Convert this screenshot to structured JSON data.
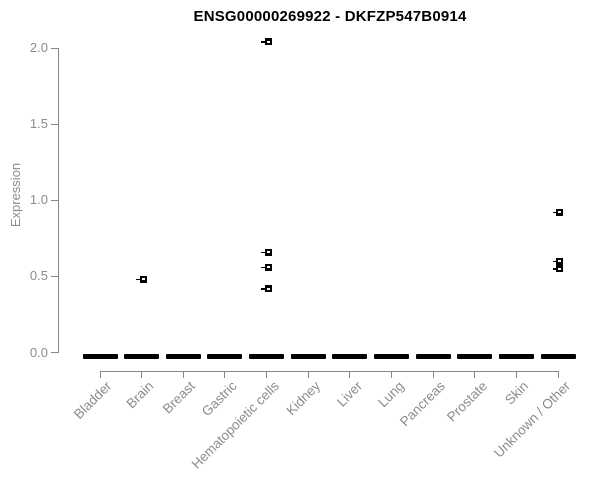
{
  "chart_data": {
    "type": "scatter",
    "subtype": "strip-plot-with-boxplot-glyphs",
    "title": "ENSG00000269922 - DKFZP547B0914",
    "xlabel": "",
    "ylabel": "Expression",
    "ylim": [
      0.0,
      2.1
    ],
    "yticks": [
      0.0,
      0.5,
      1.0,
      1.5,
      2.0
    ],
    "ytick_labels": [
      "0.0",
      "0.5",
      "1.0",
      "1.5",
      "2.0"
    ],
    "grid": "off",
    "legend": "none",
    "categories": [
      "Bladder",
      "Brain",
      "Breast",
      "Gastric",
      "Hematopoietic cells",
      "Kidney",
      "Liver",
      "Lung",
      "Pancreas",
      "Prostate",
      "Skin",
      "Unknown / Other"
    ],
    "zero_cluster_value": 0.0,
    "zero_cluster_note": "every category shows a dense thick black dash of points at expression 0.0",
    "outliers": [
      {
        "category": "Brain",
        "values": [
          0.48
        ]
      },
      {
        "category": "Hematopoietic cells",
        "values": [
          2.04,
          0.66,
          0.56,
          0.42
        ]
      },
      {
        "category": "Unknown / Other",
        "values": [
          0.92,
          0.6,
          0.55
        ]
      }
    ],
    "colors": {
      "points": "#000000",
      "axis": "#878787",
      "axis_text": "#8c8c8c",
      "title": "#000000",
      "background": "#ffffff"
    }
  }
}
